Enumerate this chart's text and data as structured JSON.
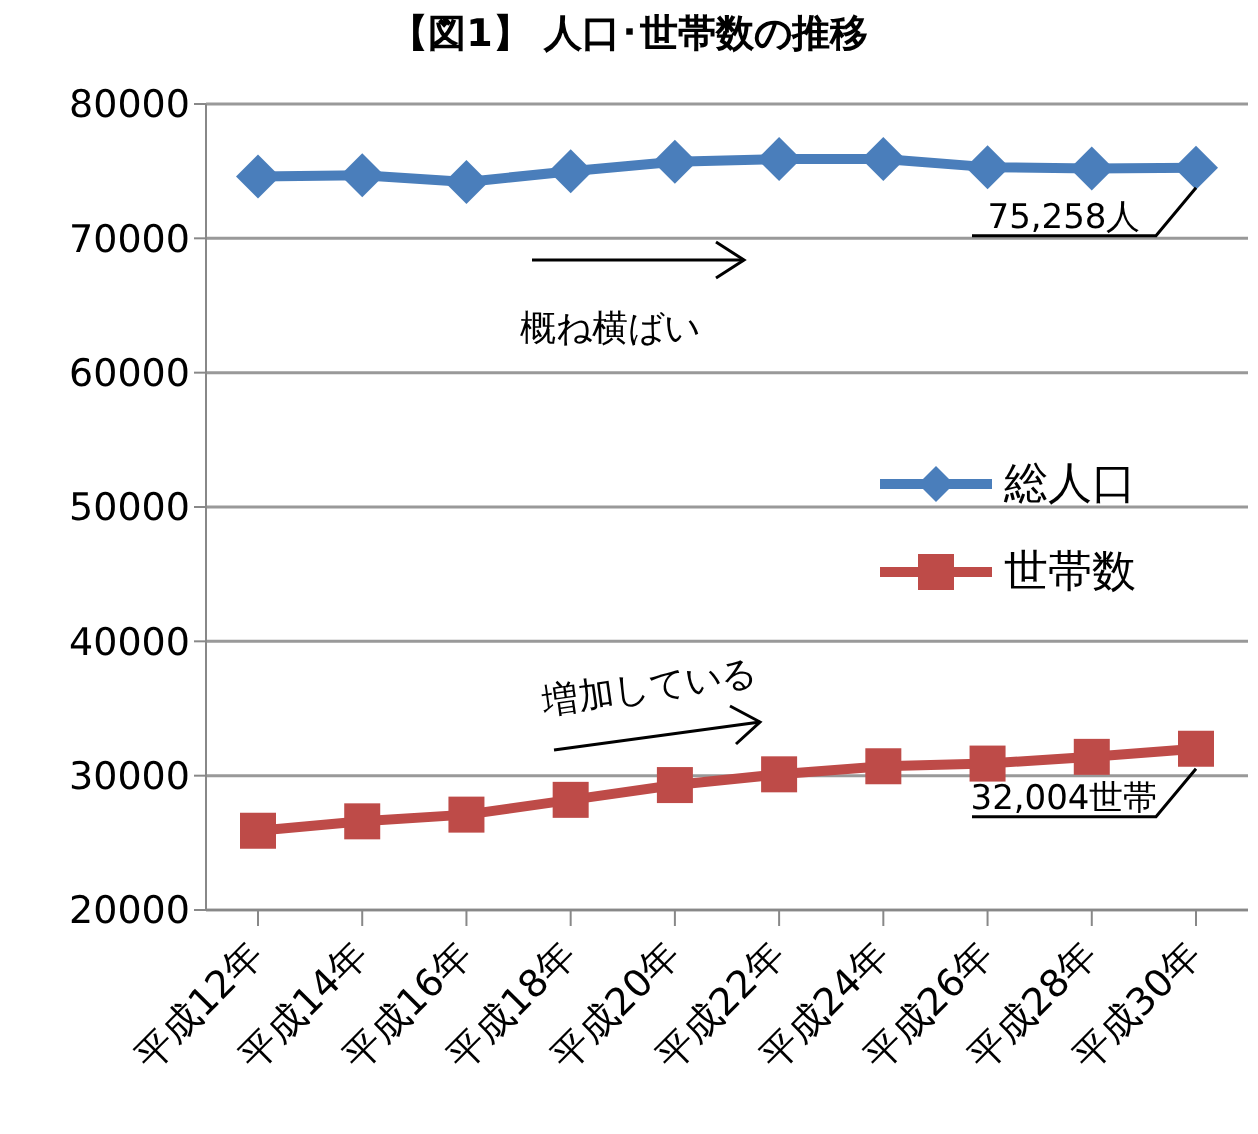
{
  "chart_data": {
    "type": "line",
    "title": "【図1】 人口･世帯数の推移",
    "categories": [
      "平成12年",
      "平成14年",
      "平成16年",
      "平成18年",
      "平成20年",
      "平成22年",
      "平成24年",
      "平成26年",
      "平成28年",
      "平成30年"
    ],
    "series": [
      {
        "name": "総人口",
        "color": "#4a7ebb",
        "marker": "diamond",
        "values": [
          74600,
          74700,
          74200,
          75000,
          75700,
          75900,
          75900,
          75300,
          75200,
          75258
        ]
      },
      {
        "name": "世帯数",
        "color": "#be4b48",
        "marker": "square",
        "values": [
          25900,
          26600,
          27100,
          28200,
          29300,
          30100,
          30700,
          30900,
          31400,
          32004
        ]
      }
    ],
    "ylim": [
      20000,
      80000
    ],
    "yticks": [
      20000,
      30000,
      40000,
      50000,
      60000,
      70000,
      80000
    ],
    "grid": "y",
    "legend": "right",
    "line_style": "solid",
    "annotations": [
      "概ね横ばい",
      "増加している",
      {
        "text": "75,258人",
        "x": "平成30年",
        "y": 75258
      },
      {
        "text": "32,004世帯",
        "x": "平成30年",
        "y": 32004
      }
    ]
  }
}
